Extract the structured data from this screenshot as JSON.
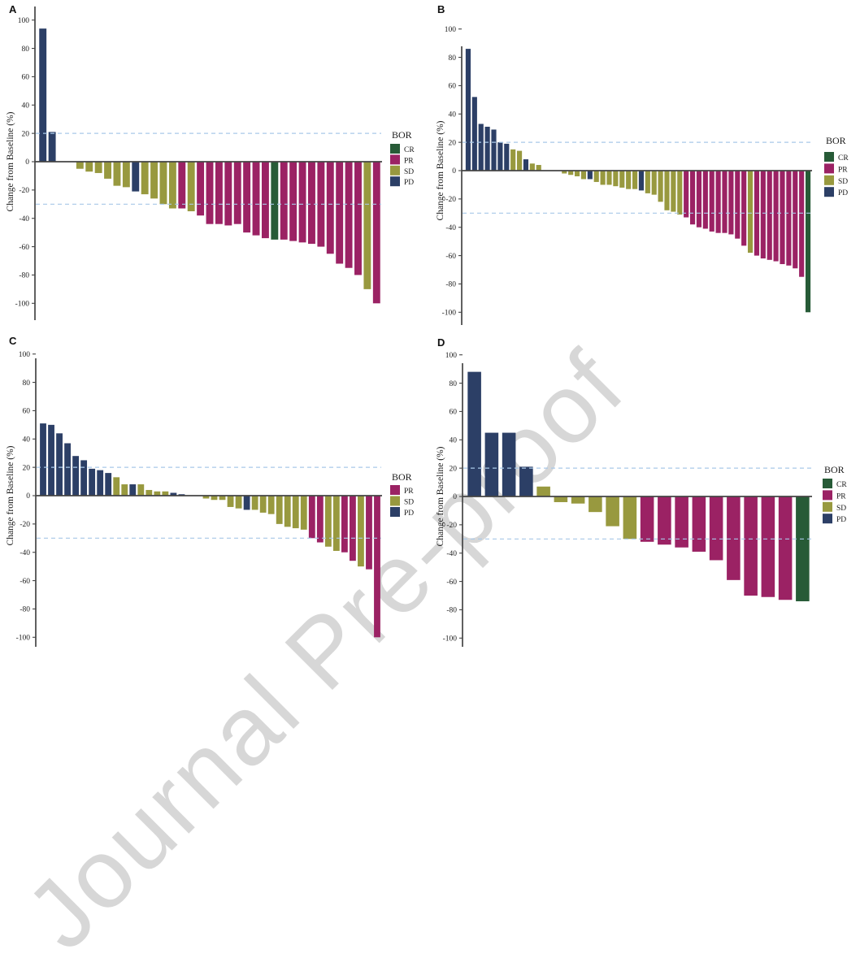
{
  "figure": {
    "watermark": "Journal Pre-proof",
    "ylabel": "Change from Baseline (%)",
    "legend_title": "BOR",
    "yticks": [
      100,
      80,
      60,
      40,
      20,
      0,
      -20,
      -40,
      -60,
      -80,
      -100
    ],
    "ref_lines": [
      20,
      -30
    ],
    "colors": {
      "CR": "#275b37",
      "PR": "#9b2264",
      "SD": "#98993f",
      "PD": "#2c3f66",
      "axis": "#454545",
      "dashed": "#a8c8e8",
      "watermark": "#d7d7d7"
    }
  },
  "chart_data": [
    {
      "type": "bar",
      "panel_label": "A",
      "ylabel": "Change from Baseline (%)",
      "ylim": [
        -100,
        100
      ],
      "legend_title": "BOR",
      "legend": [
        "CR",
        "PR",
        "SD",
        "PD"
      ],
      "ref_lines": [
        20,
        -30
      ],
      "bars": [
        {
          "value": 94,
          "bor": "PD"
        },
        {
          "value": 21,
          "bor": "PD"
        },
        {
          "value": 0,
          "bor": "gap"
        },
        {
          "value": 0,
          "bor": "gap"
        },
        {
          "value": -5,
          "bor": "SD"
        },
        {
          "value": -7,
          "bor": "SD"
        },
        {
          "value": -8,
          "bor": "SD"
        },
        {
          "value": -12,
          "bor": "SD"
        },
        {
          "value": -17,
          "bor": "SD"
        },
        {
          "value": -18,
          "bor": "SD"
        },
        {
          "value": -21,
          "bor": "PD"
        },
        {
          "value": -23,
          "bor": "SD"
        },
        {
          "value": -26,
          "bor": "SD"
        },
        {
          "value": -30,
          "bor": "SD"
        },
        {
          "value": -33,
          "bor": "SD"
        },
        {
          "value": -33,
          "bor": "PR"
        },
        {
          "value": -35,
          "bor": "SD"
        },
        {
          "value": -38,
          "bor": "PR"
        },
        {
          "value": -44,
          "bor": "PR"
        },
        {
          "value": -44,
          "bor": "PR"
        },
        {
          "value": -45,
          "bor": "PR"
        },
        {
          "value": -44,
          "bor": "PR"
        },
        {
          "value": -50,
          "bor": "PR"
        },
        {
          "value": -52,
          "bor": "PR"
        },
        {
          "value": -54,
          "bor": "PR"
        },
        {
          "value": -55,
          "bor": "CR"
        },
        {
          "value": -55,
          "bor": "PR"
        },
        {
          "value": -56,
          "bor": "PR"
        },
        {
          "value": -57,
          "bor": "PR"
        },
        {
          "value": -58,
          "bor": "PR"
        },
        {
          "value": -60,
          "bor": "PR"
        },
        {
          "value": -65,
          "bor": "PR"
        },
        {
          "value": -72,
          "bor": "PR"
        },
        {
          "value": -75,
          "bor": "PR"
        },
        {
          "value": -80,
          "bor": "PR"
        },
        {
          "value": -90,
          "bor": "SD"
        },
        {
          "value": -100,
          "bor": "PR"
        }
      ]
    },
    {
      "type": "bar",
      "panel_label": "B",
      "ylabel": "Change from Baseline (%)",
      "ylim": [
        -100,
        100
      ],
      "legend_title": "BOR",
      "legend": [
        "CR",
        "PR",
        "SD",
        "PD"
      ],
      "ref_lines": [
        20,
        -30
      ],
      "bars": [
        {
          "value": 86,
          "bor": "PD"
        },
        {
          "value": 52,
          "bor": "PD"
        },
        {
          "value": 33,
          "bor": "PD"
        },
        {
          "value": 31,
          "bor": "PD"
        },
        {
          "value": 29,
          "bor": "PD"
        },
        {
          "value": 20,
          "bor": "PD"
        },
        {
          "value": 19,
          "bor": "PD"
        },
        {
          "value": 15,
          "bor": "SD"
        },
        {
          "value": 14,
          "bor": "SD"
        },
        {
          "value": 8,
          "bor": "PD"
        },
        {
          "value": 5,
          "bor": "SD"
        },
        {
          "value": 4,
          "bor": "SD"
        },
        {
          "value": 0,
          "bor": "gap"
        },
        {
          "value": 0,
          "bor": "gap"
        },
        {
          "value": 0,
          "bor": "gap"
        },
        {
          "value": -2,
          "bor": "SD"
        },
        {
          "value": -3,
          "bor": "SD"
        },
        {
          "value": -4,
          "bor": "SD"
        },
        {
          "value": -6,
          "bor": "SD"
        },
        {
          "value": -6,
          "bor": "PD"
        },
        {
          "value": -8,
          "bor": "SD"
        },
        {
          "value": -10,
          "bor": "SD"
        },
        {
          "value": -10,
          "bor": "SD"
        },
        {
          "value": -11,
          "bor": "SD"
        },
        {
          "value": -12,
          "bor": "SD"
        },
        {
          "value": -13,
          "bor": "SD"
        },
        {
          "value": -13,
          "bor": "SD"
        },
        {
          "value": -14,
          "bor": "PD"
        },
        {
          "value": -16,
          "bor": "SD"
        },
        {
          "value": -17,
          "bor": "SD"
        },
        {
          "value": -22,
          "bor": "SD"
        },
        {
          "value": -28,
          "bor": "SD"
        },
        {
          "value": -29,
          "bor": "SD"
        },
        {
          "value": -31,
          "bor": "SD"
        },
        {
          "value": -33,
          "bor": "PR"
        },
        {
          "value": -38,
          "bor": "PR"
        },
        {
          "value": -40,
          "bor": "PR"
        },
        {
          "value": -41,
          "bor": "PR"
        },
        {
          "value": -43,
          "bor": "PR"
        },
        {
          "value": -44,
          "bor": "PR"
        },
        {
          "value": -44,
          "bor": "PR"
        },
        {
          "value": -45,
          "bor": "PR"
        },
        {
          "value": -48,
          "bor": "PR"
        },
        {
          "value": -53,
          "bor": "PR"
        },
        {
          "value": -58,
          "bor": "SD"
        },
        {
          "value": -60,
          "bor": "PR"
        },
        {
          "value": -62,
          "bor": "PR"
        },
        {
          "value": -63,
          "bor": "PR"
        },
        {
          "value": -64,
          "bor": "PR"
        },
        {
          "value": -66,
          "bor": "PR"
        },
        {
          "value": -67,
          "bor": "PR"
        },
        {
          "value": -69,
          "bor": "PR"
        },
        {
          "value": -75,
          "bor": "PR"
        },
        {
          "value": -100,
          "bor": "CR"
        }
      ]
    },
    {
      "type": "bar",
      "panel_label": "C",
      "ylabel": "Change from Baseline (%)",
      "ylim": [
        -100,
        100
      ],
      "legend_title": "BOR",
      "legend": [
        "PR",
        "SD",
        "PD"
      ],
      "ref_lines": [
        20,
        -30
      ],
      "bars": [
        {
          "value": 51,
          "bor": "PD"
        },
        {
          "value": 50,
          "bor": "PD"
        },
        {
          "value": 44,
          "bor": "PD"
        },
        {
          "value": 37,
          "bor": "PD"
        },
        {
          "value": 28,
          "bor": "PD"
        },
        {
          "value": 25,
          "bor": "PD"
        },
        {
          "value": 19,
          "bor": "PD"
        },
        {
          "value": 18,
          "bor": "PD"
        },
        {
          "value": 16,
          "bor": "PD"
        },
        {
          "value": 13,
          "bor": "SD"
        },
        {
          "value": 8,
          "bor": "SD"
        },
        {
          "value": 8,
          "bor": "PD"
        },
        {
          "value": 8,
          "bor": "SD"
        },
        {
          "value": 4,
          "bor": "SD"
        },
        {
          "value": 3,
          "bor": "SD"
        },
        {
          "value": 3,
          "bor": "SD"
        },
        {
          "value": 2,
          "bor": "PD"
        },
        {
          "value": 1,
          "bor": "PD"
        },
        {
          "value": 0,
          "bor": "gap"
        },
        {
          "value": 0,
          "bor": "gap"
        },
        {
          "value": -2,
          "bor": "SD"
        },
        {
          "value": -3,
          "bor": "SD"
        },
        {
          "value": -3,
          "bor": "SD"
        },
        {
          "value": -8,
          "bor": "SD"
        },
        {
          "value": -9,
          "bor": "SD"
        },
        {
          "value": -10,
          "bor": "PD"
        },
        {
          "value": -10,
          "bor": "SD"
        },
        {
          "value": -12,
          "bor": "SD"
        },
        {
          "value": -13,
          "bor": "SD"
        },
        {
          "value": -20,
          "bor": "SD"
        },
        {
          "value": -22,
          "bor": "SD"
        },
        {
          "value": -23,
          "bor": "SD"
        },
        {
          "value": -24,
          "bor": "SD"
        },
        {
          "value": -30,
          "bor": "PR"
        },
        {
          "value": -33,
          "bor": "PR"
        },
        {
          "value": -36,
          "bor": "SD"
        },
        {
          "value": -39,
          "bor": "SD"
        },
        {
          "value": -40,
          "bor": "PR"
        },
        {
          "value": -46,
          "bor": "PR"
        },
        {
          "value": -50,
          "bor": "SD"
        },
        {
          "value": -52,
          "bor": "PR"
        },
        {
          "value": -100,
          "bor": "PR"
        }
      ]
    },
    {
      "type": "bar",
      "panel_label": "D",
      "ylabel": "Change from Baseline (%)",
      "ylim": [
        -100,
        100
      ],
      "legend_title": "BOR",
      "legend": [
        "CR",
        "PR",
        "SD",
        "PD"
      ],
      "ref_lines": [
        20,
        -30
      ],
      "bars": [
        {
          "value": 88,
          "bor": "PD"
        },
        {
          "value": 45,
          "bor": "PD"
        },
        {
          "value": 45,
          "bor": "PD"
        },
        {
          "value": 21,
          "bor": "PD"
        },
        {
          "value": 7,
          "bor": "SD"
        },
        {
          "value": -4,
          "bor": "SD"
        },
        {
          "value": -5,
          "bor": "SD"
        },
        {
          "value": -11,
          "bor": "SD"
        },
        {
          "value": -21,
          "bor": "SD"
        },
        {
          "value": -30,
          "bor": "SD"
        },
        {
          "value": -32,
          "bor": "PR"
        },
        {
          "value": -34,
          "bor": "PR"
        },
        {
          "value": -36,
          "bor": "PR"
        },
        {
          "value": -39,
          "bor": "PR"
        },
        {
          "value": -45,
          "bor": "PR"
        },
        {
          "value": -59,
          "bor": "PR"
        },
        {
          "value": -70,
          "bor": "PR"
        },
        {
          "value": -71,
          "bor": "PR"
        },
        {
          "value": -73,
          "bor": "PR"
        },
        {
          "value": -74,
          "bor": "CR"
        }
      ]
    }
  ]
}
